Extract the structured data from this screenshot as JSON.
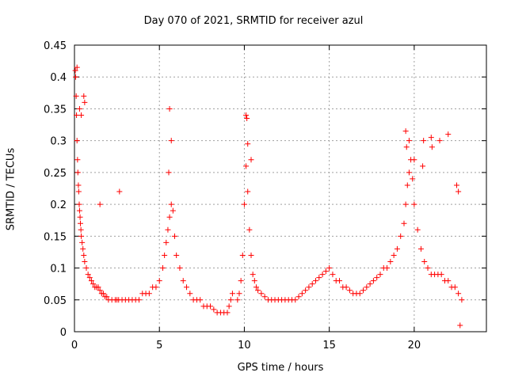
{
  "chart_data": {
    "type": "scatter",
    "title": "Day 070 of 2021, SRMTID for receiver azul",
    "xlabel": "GPS time / hours",
    "ylabel": "SRMTID / TECUs",
    "xlim": [
      0,
      24.25
    ],
    "ylim": [
      0,
      0.45
    ],
    "xticks": [
      "0",
      "5",
      "10",
      "15",
      "20"
    ],
    "yticks": [
      "0",
      "0.05",
      "0.1",
      "0.15",
      "0.2",
      "0.25",
      "0.3",
      "0.35",
      "0.4",
      "0.45"
    ],
    "grid": true,
    "legend": "none",
    "marker": "+",
    "color": "#ff0000",
    "series": [
      {
        "x": [
          0.05,
          0.07,
          0.1,
          0.12,
          0.15,
          0.18,
          0.2,
          0.23,
          0.25,
          0.28,
          0.3,
          0.33,
          0.35,
          0.38,
          0.4,
          0.45,
          0.5,
          0.55,
          0.6,
          0.7,
          0.8,
          0.9,
          1.0,
          1.1,
          1.2,
          1.3,
          1.4,
          1.5,
          1.6,
          1.7,
          1.8,
          1.9,
          2.0,
          2.2,
          2.4,
          2.5,
          2.6,
          2.8,
          3.0,
          3.2,
          3.4,
          3.6,
          3.8,
          4.0,
          4.2,
          4.4,
          4.6,
          4.8,
          5.0,
          5.2,
          5.3,
          5.4,
          5.5,
          5.6,
          5.7,
          5.8,
          5.9,
          6.0,
          6.2,
          6.4,
          6.6,
          6.8,
          7.0,
          7.2,
          7.4,
          7.6,
          7.8,
          8.0,
          8.2,
          8.4,
          8.6,
          8.8,
          9.0,
          9.1,
          9.2,
          9.3
        ],
        "y": [
          0.41,
          0.4,
          0.37,
          0.34,
          0.3,
          0.27,
          0.25,
          0.23,
          0.22,
          0.2,
          0.19,
          0.18,
          0.17,
          0.16,
          0.15,
          0.14,
          0.13,
          0.12,
          0.11,
          0.1,
          0.09,
          0.085,
          0.08,
          0.075,
          0.07,
          0.07,
          0.07,
          0.065,
          0.06,
          0.06,
          0.055,
          0.055,
          0.05,
          0.05,
          0.05,
          0.05,
          0.05,
          0.05,
          0.05,
          0.05,
          0.05,
          0.05,
          0.05,
          0.06,
          0.06,
          0.06,
          0.07,
          0.07,
          0.08,
          0.1,
          0.12,
          0.14,
          0.16,
          0.18,
          0.2,
          0.19,
          0.15,
          0.12,
          0.1,
          0.08,
          0.07,
          0.06,
          0.05,
          0.05,
          0.05,
          0.04,
          0.04,
          0.04,
          0.035,
          0.03,
          0.03,
          0.03,
          0.03,
          0.04,
          0.05,
          0.06
        ]
      },
      {
        "x": [
          9.6,
          9.7,
          9.8,
          9.9,
          10.0,
          10.1,
          10.2,
          10.3,
          10.4,
          10.5,
          10.6,
          10.7,
          10.8,
          11.0,
          11.2,
          11.4,
          11.6,
          11.8,
          12.0,
          12.2,
          12.4,
          12.6,
          12.8,
          13.0,
          13.2,
          13.4,
          13.6,
          13.8,
          14.0,
          14.2,
          14.4,
          14.6,
          14.8,
          15.0,
          15.2,
          15.4,
          15.6,
          15.8,
          16.0,
          16.2,
          16.4,
          16.6,
          16.8,
          17.0,
          17.2,
          17.4,
          17.6,
          17.8,
          18.0,
          18.2,
          18.4,
          18.6,
          18.8,
          19.0,
          19.2,
          19.4,
          19.5,
          19.6,
          19.7,
          19.8,
          19.9,
          20.0,
          20.2,
          20.4,
          20.6,
          20.8,
          21.0,
          21.2,
          21.4,
          21.6,
          21.8,
          22.0,
          22.2,
          22.4,
          22.6,
          22.8
        ],
        "y": [
          0.05,
          0.06,
          0.08,
          0.12,
          0.2,
          0.26,
          0.22,
          0.16,
          0.12,
          0.09,
          0.08,
          0.07,
          0.065,
          0.06,
          0.055,
          0.05,
          0.05,
          0.05,
          0.05,
          0.05,
          0.05,
          0.05,
          0.05,
          0.05,
          0.055,
          0.06,
          0.065,
          0.07,
          0.075,
          0.08,
          0.085,
          0.09,
          0.095,
          0.1,
          0.09,
          0.08,
          0.08,
          0.07,
          0.07,
          0.065,
          0.06,
          0.06,
          0.06,
          0.065,
          0.07,
          0.075,
          0.08,
          0.085,
          0.09,
          0.1,
          0.1,
          0.11,
          0.12,
          0.13,
          0.15,
          0.17,
          0.2,
          0.23,
          0.25,
          0.27,
          0.24,
          0.2,
          0.16,
          0.13,
          0.11,
          0.1,
          0.09,
          0.09,
          0.09,
          0.09,
          0.08,
          0.08,
          0.07,
          0.07,
          0.06,
          0.05
        ]
      },
      {
        "x": [
          0.15,
          0.3,
          0.4,
          0.55,
          0.6,
          1.5,
          2.65,
          5.6,
          5.7,
          5.55,
          10.1,
          10.15,
          10.2,
          10.4,
          19.5,
          19.55,
          19.7,
          20.0,
          20.5,
          20.55,
          21.0,
          21.05,
          21.5,
          22.0,
          22.5,
          22.6,
          22.7
        ],
        "y": [
          0.415,
          0.35,
          0.34,
          0.37,
          0.36,
          0.2,
          0.22,
          0.35,
          0.3,
          0.25,
          0.34,
          0.335,
          0.295,
          0.27,
          0.315,
          0.29,
          0.3,
          0.27,
          0.26,
          0.3,
          0.305,
          0.29,
          0.3,
          0.31,
          0.23,
          0.22,
          0.01
        ]
      }
    ]
  }
}
